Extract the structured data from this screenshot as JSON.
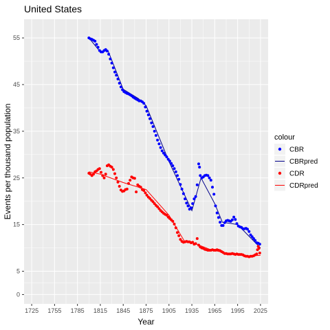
{
  "chart_data": {
    "type": "scatter",
    "title": "United States",
    "xlabel": "Year",
    "ylabel": "Events per thousand population",
    "xlim": [
      1715,
      2035
    ],
    "ylim": [
      -2,
      59
    ],
    "x_ticks": [
      1725,
      1755,
      1785,
      1815,
      1845,
      1875,
      1905,
      1935,
      1965,
      1995,
      2025
    ],
    "y_ticks": [
      0,
      5,
      15,
      25,
      35,
      45,
      55
    ],
    "grid": true,
    "legend": {
      "title": "colour",
      "position": "right",
      "items": [
        {
          "label": "CBR",
          "kind": "point",
          "color": "#0000FF"
        },
        {
          "label": "CBRpred",
          "kind": "line",
          "color": "#00008B"
        },
        {
          "label": "CDR",
          "kind": "point",
          "color": "#FF0000"
        },
        {
          "label": "CDRpred",
          "kind": "line",
          "color": "#FF0000"
        }
      ]
    },
    "series": [
      {
        "name": "CBR",
        "kind": "points",
        "color": "#0000FF",
        "points": [
          [
            1800,
            55.0
          ],
          [
            1802,
            54.8
          ],
          [
            1804,
            54.7
          ],
          [
            1806,
            54.5
          ],
          [
            1808,
            54.3
          ],
          [
            1810,
            53.6
          ],
          [
            1812,
            53.0
          ],
          [
            1814,
            52.3
          ],
          [
            1816,
            52.0
          ],
          [
            1818,
            52.0
          ],
          [
            1820,
            52.3
          ],
          [
            1822,
            52.5
          ],
          [
            1824,
            52.2
          ],
          [
            1826,
            51.5
          ],
          [
            1828,
            50.5
          ],
          [
            1830,
            49.6
          ],
          [
            1832,
            48.6
          ],
          [
            1834,
            47.7
          ],
          [
            1836,
            47.0
          ],
          [
            1838,
            46.2
          ],
          [
            1840,
            45.3
          ],
          [
            1842,
            44.5
          ],
          [
            1844,
            43.9
          ],
          [
            1846,
            43.5
          ],
          [
            1848,
            43.3
          ],
          [
            1850,
            43.1
          ],
          [
            1852,
            43.0
          ],
          [
            1854,
            42.8
          ],
          [
            1856,
            42.6
          ],
          [
            1858,
            42.3
          ],
          [
            1860,
            42.1
          ],
          [
            1862,
            41.9
          ],
          [
            1864,
            41.7
          ],
          [
            1866,
            41.5
          ],
          [
            1868,
            41.5
          ],
          [
            1870,
            41.3
          ],
          [
            1872,
            41.0
          ],
          [
            1874,
            40.2
          ],
          [
            1876,
            39.3
          ],
          [
            1878,
            38.5
          ],
          [
            1880,
            37.7
          ],
          [
            1882,
            36.8
          ],
          [
            1884,
            36.0
          ],
          [
            1886,
            35.0
          ],
          [
            1888,
            34.1
          ],
          [
            1890,
            33.1
          ],
          [
            1892,
            32.3
          ],
          [
            1894,
            31.5
          ],
          [
            1896,
            30.8
          ],
          [
            1898,
            30.3
          ],
          [
            1900,
            29.9
          ],
          [
            1902,
            29.5
          ],
          [
            1904,
            29.0
          ],
          [
            1906,
            28.6
          ],
          [
            1908,
            28.1
          ],
          [
            1910,
            27.6
          ],
          [
            1912,
            27.0
          ],
          [
            1914,
            26.3
          ],
          [
            1916,
            25.5
          ],
          [
            1918,
            24.7
          ],
          [
            1920,
            23.6
          ],
          [
            1922,
            22.6
          ],
          [
            1924,
            21.6
          ],
          [
            1926,
            20.5
          ],
          [
            1928,
            19.6
          ],
          [
            1930,
            19.0
          ],
          [
            1932,
            18.3
          ],
          [
            1934,
            18.6
          ],
          [
            1936,
            19.5
          ],
          [
            1938,
            20.5
          ],
          [
            1940,
            21.0
          ],
          [
            1942,
            23.5
          ],
          [
            1944,
            28.0
          ],
          [
            1945,
            27.3
          ],
          [
            1946,
            25.5
          ],
          [
            1948,
            25.0
          ],
          [
            1950,
            25.2
          ],
          [
            1952,
            25.5
          ],
          [
            1954,
            25.6
          ],
          [
            1956,
            25.5
          ],
          [
            1958,
            25.0
          ],
          [
            1960,
            24.5
          ],
          [
            1962,
            23.0
          ],
          [
            1964,
            21.5
          ],
          [
            1966,
            19.0
          ],
          [
            1968,
            17.5
          ],
          [
            1970,
            16.5
          ],
          [
            1972,
            15.5
          ],
          [
            1974,
            14.8
          ],
          [
            1976,
            14.8
          ],
          [
            1978,
            15.4
          ],
          [
            1980,
            15.8
          ],
          [
            1982,
            15.9
          ],
          [
            1984,
            15.8
          ],
          [
            1986,
            15.7
          ],
          [
            1988,
            16.0
          ],
          [
            1990,
            16.6
          ],
          [
            1992,
            16.1
          ],
          [
            1994,
            15.2
          ],
          [
            1996,
            14.7
          ],
          [
            1998,
            14.5
          ],
          [
            2000,
            14.4
          ],
          [
            2002,
            14.1
          ],
          [
            2004,
            14.1
          ],
          [
            2006,
            14.2
          ],
          [
            2008,
            14.0
          ],
          [
            2010,
            13.5
          ],
          [
            2012,
            12.8
          ],
          [
            2014,
            12.4
          ],
          [
            2016,
            12.0
          ],
          [
            2018,
            11.6
          ],
          [
            2020,
            11.1
          ],
          [
            2022,
            11.0
          ],
          [
            2024,
            10.8
          ]
        ]
      },
      {
        "name": "CBRpred",
        "kind": "line",
        "color": "#00008B",
        "points": [
          [
            1800,
            55.0
          ],
          [
            1815,
            52.0
          ],
          [
            1825,
            52.3
          ],
          [
            1845,
            44.0
          ],
          [
            1865,
            42.0
          ],
          [
            1875,
            40.5
          ],
          [
            1905,
            28.5
          ],
          [
            1935,
            18.0
          ],
          [
            1947,
            25.0
          ],
          [
            1965,
            19.5
          ],
          [
            1975,
            15.5
          ],
          [
            1995,
            15.0
          ],
          [
            2025,
            10.0
          ]
        ]
      },
      {
        "name": "CDR",
        "kind": "points",
        "color": "#FF0000",
        "points": [
          [
            1800,
            26.0
          ],
          [
            1802,
            25.8
          ],
          [
            1804,
            25.5
          ],
          [
            1806,
            25.8
          ],
          [
            1808,
            26.3
          ],
          [
            1810,
            26.5
          ],
          [
            1812,
            26.8
          ],
          [
            1814,
            27.0
          ],
          [
            1816,
            26.2
          ],
          [
            1818,
            25.5
          ],
          [
            1820,
            25.0
          ],
          [
            1822,
            25.8
          ],
          [
            1824,
            27.6
          ],
          [
            1826,
            27.8
          ],
          [
            1828,
            27.5
          ],
          [
            1830,
            27.3
          ],
          [
            1832,
            26.8
          ],
          [
            1834,
            25.9
          ],
          [
            1836,
            25.0
          ],
          [
            1838,
            24.1
          ],
          [
            1840,
            23.2
          ],
          [
            1842,
            22.4
          ],
          [
            1844,
            22.1
          ],
          [
            1846,
            22.2
          ],
          [
            1848,
            22.5
          ],
          [
            1850,
            22.6
          ],
          [
            1852,
            23.8
          ],
          [
            1854,
            24.5
          ],
          [
            1856,
            25.2
          ],
          [
            1858,
            25.0
          ],
          [
            1860,
            24.9
          ],
          [
            1862,
            22.0
          ],
          [
            1864,
            23.5
          ],
          [
            1866,
            23.2
          ],
          [
            1868,
            23.0
          ],
          [
            1870,
            22.5
          ],
          [
            1872,
            22.3
          ],
          [
            1874,
            21.8
          ],
          [
            1876,
            21.3
          ],
          [
            1878,
            20.9
          ],
          [
            1880,
            20.6
          ],
          [
            1882,
            20.2
          ],
          [
            1884,
            19.9
          ],
          [
            1886,
            19.5
          ],
          [
            1888,
            19.1
          ],
          [
            1890,
            18.8
          ],
          [
            1892,
            18.4
          ],
          [
            1894,
            18.0
          ],
          [
            1896,
            17.7
          ],
          [
            1898,
            17.4
          ],
          [
            1900,
            17.2
          ],
          [
            1902,
            17.0
          ],
          [
            1904,
            16.6
          ],
          [
            1906,
            16.3
          ],
          [
            1908,
            16.0
          ],
          [
            1910,
            15.7
          ],
          [
            1912,
            15.1
          ],
          [
            1914,
            14.3
          ],
          [
            1916,
            13.3
          ],
          [
            1918,
            12.6
          ],
          [
            1920,
            11.8
          ],
          [
            1922,
            11.4
          ],
          [
            1924,
            11.2
          ],
          [
            1926,
            11.3
          ],
          [
            1928,
            11.4
          ],
          [
            1930,
            11.3
          ],
          [
            1932,
            11.3
          ],
          [
            1934,
            11.1
          ],
          [
            1936,
            11.2
          ],
          [
            1938,
            10.8
          ],
          [
            1940,
            10.9
          ],
          [
            1942,
            12.0
          ],
          [
            1944,
            10.6
          ],
          [
            1946,
            10.2
          ],
          [
            1948,
            10.0
          ],
          [
            1950,
            9.9
          ],
          [
            1952,
            9.7
          ],
          [
            1954,
            9.6
          ],
          [
            1956,
            9.5
          ],
          [
            1958,
            9.5
          ],
          [
            1960,
            9.5
          ],
          [
            1962,
            9.6
          ],
          [
            1964,
            9.5
          ],
          [
            1966,
            9.5
          ],
          [
            1968,
            9.6
          ],
          [
            1970,
            9.5
          ],
          [
            1972,
            9.4
          ],
          [
            1974,
            9.2
          ],
          [
            1976,
            9.0
          ],
          [
            1978,
            8.8
          ],
          [
            1980,
            8.8
          ],
          [
            1982,
            8.7
          ],
          [
            1984,
            8.7
          ],
          [
            1986,
            8.7
          ],
          [
            1988,
            8.8
          ],
          [
            1990,
            8.7
          ],
          [
            1992,
            8.6
          ],
          [
            1994,
            8.7
          ],
          [
            1996,
            8.6
          ],
          [
            1998,
            8.6
          ],
          [
            2000,
            8.6
          ],
          [
            2002,
            8.5
          ],
          [
            2004,
            8.3
          ],
          [
            2006,
            8.2
          ],
          [
            2008,
            8.2
          ],
          [
            2010,
            8.1
          ],
          [
            2012,
            8.2
          ],
          [
            2014,
            8.2
          ],
          [
            2016,
            8.3
          ],
          [
            2018,
            8.5
          ],
          [
            2020,
            8.7
          ],
          [
            2021,
            9.6
          ],
          [
            2022,
            10.3
          ],
          [
            2023,
            9.9
          ],
          [
            2024,
            8.9
          ]
        ]
      },
      {
        "name": "CDRpred",
        "kind": "line",
        "color": "#FF0000",
        "points": [
          [
            1800,
            26.3
          ],
          [
            1815,
            25.8
          ],
          [
            1845,
            24.0
          ],
          [
            1875,
            22.5
          ],
          [
            1905,
            17.0
          ],
          [
            1925,
            11.5
          ],
          [
            1935,
            11.2
          ],
          [
            1960,
            9.6
          ],
          [
            1980,
            8.9
          ],
          [
            2010,
            8.3
          ],
          [
            2025,
            8.4
          ]
        ]
      }
    ]
  }
}
